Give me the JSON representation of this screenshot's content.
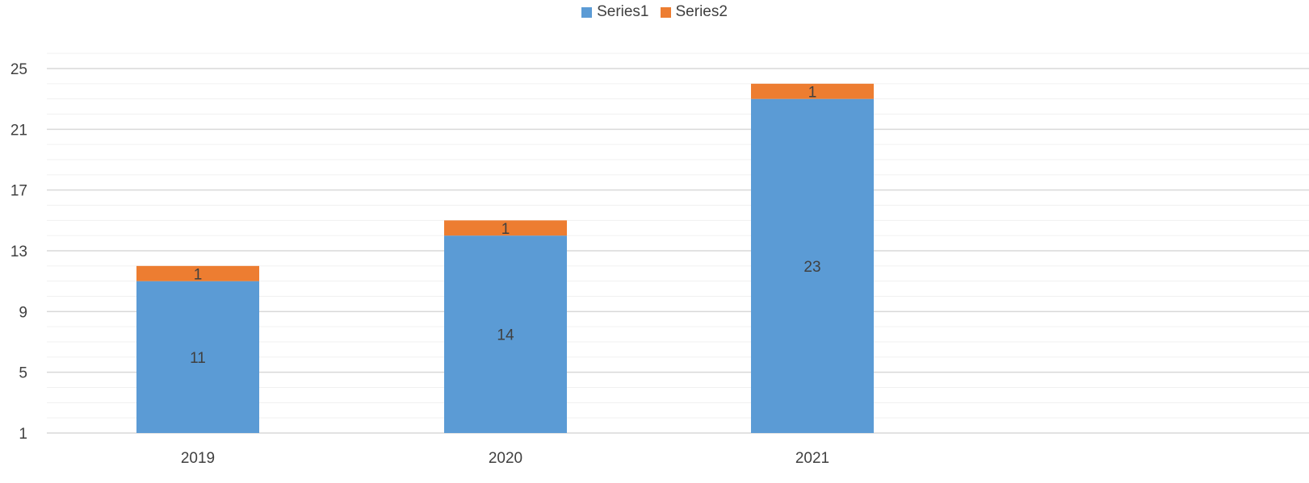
{
  "chart_data": {
    "type": "bar",
    "stacked": true,
    "categories": [
      "2019",
      "2020",
      "2021"
    ],
    "series": [
      {
        "name": "Series1",
        "color": "#5b9bd5",
        "values": [
          11,
          14,
          23
        ]
      },
      {
        "name": "Series2",
        "color": "#ed7d31",
        "values": [
          1,
          1,
          1
        ]
      }
    ],
    "ylim": [
      1,
      26
    ],
    "yticks": [
      1,
      5,
      9,
      13,
      17,
      21,
      25
    ],
    "grid": true,
    "minor_grid": true,
    "legend_position": "top-center",
    "title": "",
    "xlabel": "",
    "ylabel": ""
  }
}
